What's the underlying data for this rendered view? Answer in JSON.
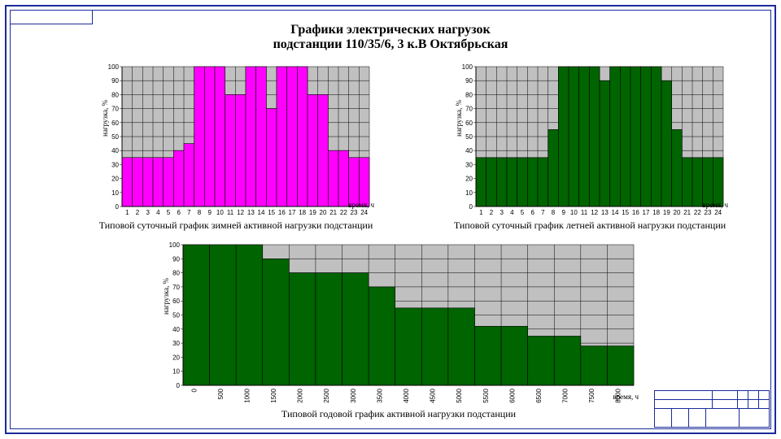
{
  "frame_color": "#1a2a9a",
  "title": {
    "line1": "Графики электрических нагрузок",
    "line2": "подстанции 110/35/6, 3 к.В Октябрьская",
    "fontsize": 16
  },
  "axis": {
    "y_label": "нагрузка, %",
    "x_label_daily": "время, ч",
    "x_label_annual": "время, ч",
    "tick_fontsize": 8
  },
  "colors": {
    "plot_bg": "#c0c0c0",
    "grid": "#000000",
    "winter_bar": "#ff00ff",
    "summer_bar": "#006400",
    "annual_bar": "#006400",
    "bar_outline": "#000000"
  },
  "winter": {
    "type": "bar",
    "caption": "Типовой суточный график зимней активной нагрузки подстанции",
    "ylim": [
      0,
      100
    ],
    "ystep": 10,
    "x_ticks": [
      1,
      2,
      3,
      4,
      5,
      6,
      7,
      8,
      9,
      10,
      11,
      12,
      13,
      14,
      15,
      16,
      17,
      18,
      19,
      20,
      21,
      22,
      23,
      24
    ],
    "values": [
      35,
      35,
      35,
      35,
      35,
      40,
      45,
      100,
      100,
      100,
      80,
      80,
      100,
      100,
      70,
      100,
      100,
      100,
      80,
      80,
      40,
      40,
      35,
      35
    ]
  },
  "summer": {
    "type": "bar",
    "caption": "Типовой суточный график летней активной нагрузки подстанции",
    "ylim": [
      0,
      100
    ],
    "ystep": 10,
    "x_ticks": [
      1,
      2,
      3,
      4,
      5,
      6,
      7,
      8,
      9,
      10,
      11,
      12,
      13,
      14,
      15,
      16,
      17,
      18,
      19,
      20,
      21,
      22,
      23,
      24
    ],
    "values": [
      35,
      35,
      35,
      35,
      35,
      35,
      35,
      55,
      100,
      100,
      100,
      100,
      90,
      100,
      100,
      100,
      100,
      100,
      90,
      55,
      35,
      35,
      35,
      35
    ]
  },
  "annual": {
    "type": "bar",
    "caption": "Типовой годовой график активной нагрузки подстанции",
    "ylim": [
      0,
      100
    ],
    "ystep": 10,
    "x_ticks": [
      0,
      500,
      1000,
      1500,
      2000,
      2500,
      3000,
      3500,
      4000,
      4500,
      5000,
      5500,
      6000,
      6500,
      7000,
      7500,
      8000,
      8500
    ],
    "values": [
      100,
      100,
      100,
      90,
      80,
      80,
      80,
      70,
      55,
      55,
      55,
      42,
      42,
      35,
      35,
      28,
      28
    ]
  }
}
